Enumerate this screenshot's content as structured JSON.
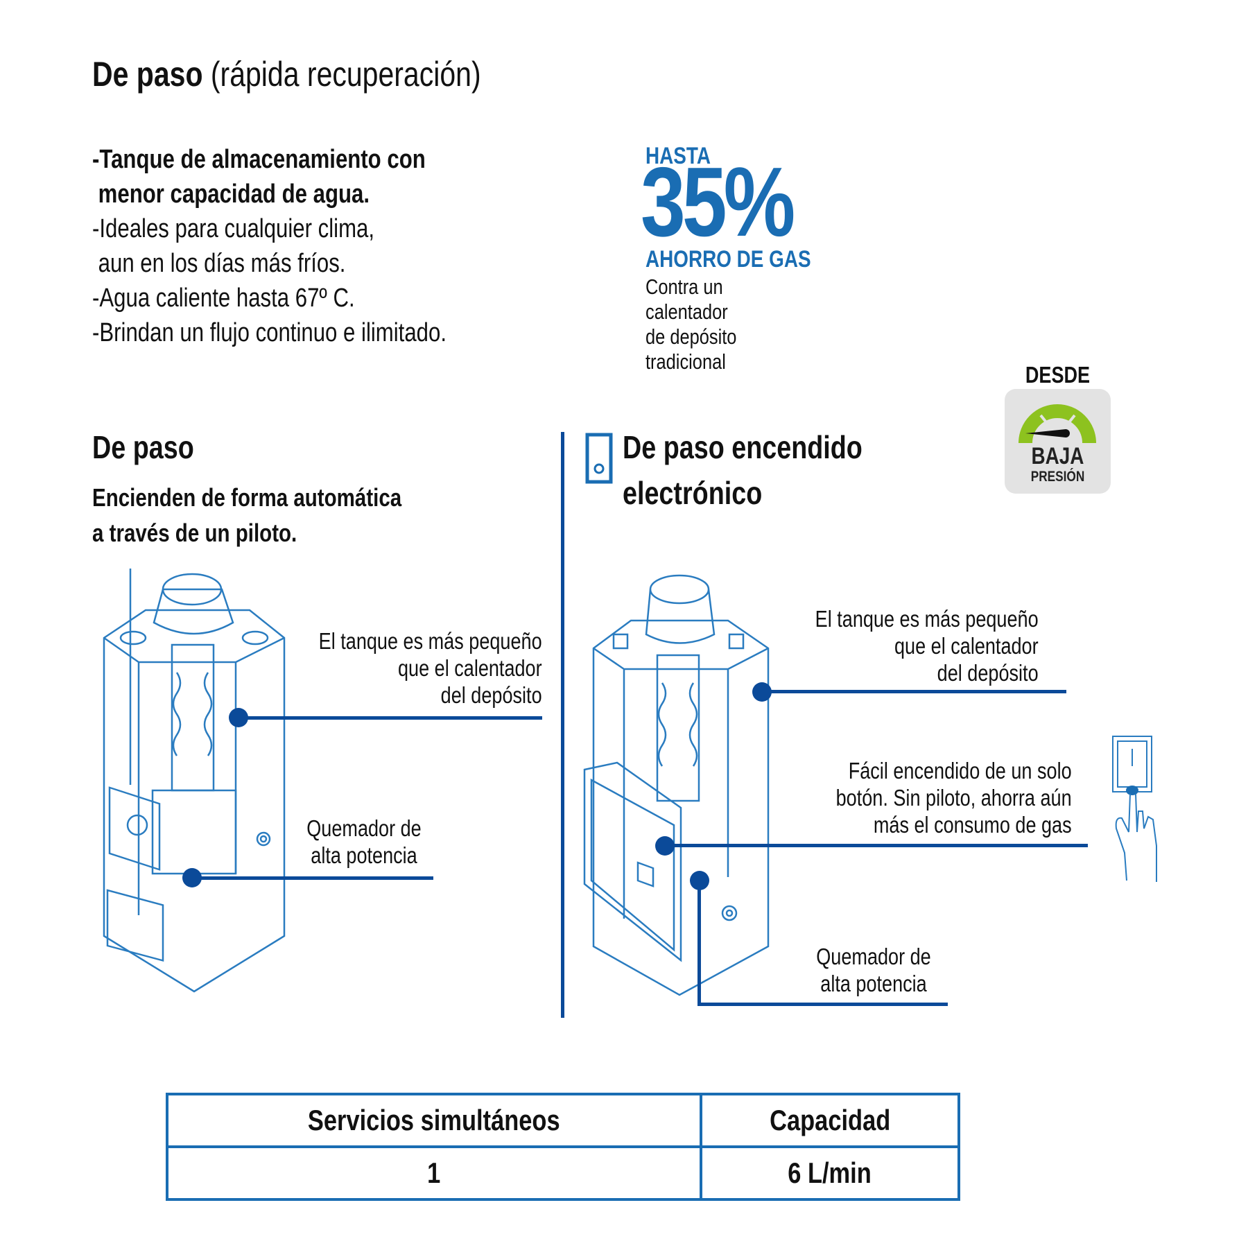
{
  "title": {
    "bold": "De paso",
    "regular": " (rápida recuperación)"
  },
  "features": {
    "bold_lines": [
      "-Tanque de almacenamiento con",
      " menor capacidad de agua."
    ],
    "lines": [
      "-Ideales para cualquier clima,",
      " aun en los días más fríos.",
      "-Agua caliente hasta 67º C.",
      "-Brindan un flujo continuo e ilimitado."
    ]
  },
  "savings": {
    "prefix": "HASTA",
    "value": "35%",
    "label": "AHORRO DE GAS",
    "note_lines": [
      "Contra un",
      "calentador",
      "de depósito",
      "tradicional"
    ]
  },
  "pressure_badge": {
    "top": "DESDE",
    "main": "BAJA",
    "sub": "PRESIÓN",
    "gauge_color": "#8dc21f",
    "badge_bg": "#e3e3e3"
  },
  "left_section": {
    "heading": "De paso",
    "subtitle_lines": [
      "Encienden de forma automática",
      "a través de un piloto."
    ],
    "callout_tank": [
      "El tanque es más pequeño",
      "que el calentador",
      "del depósito"
    ],
    "callout_burner": [
      "Quemador de",
      "alta potencia"
    ]
  },
  "right_section": {
    "heading_lines": [
      "De paso encendido",
      "electrónico"
    ],
    "callout_tank": [
      "El tanque es más pequeño",
      "que el calentador",
      "del depósito"
    ],
    "callout_button": [
      "Fácil encendido de un solo",
      "botón. Sin piloto, ahorra aún",
      "más el consumo de gas"
    ],
    "callout_burner": [
      "Quemador de",
      "alta potencia"
    ]
  },
  "spec_table": {
    "headers": [
      "Servicios simultáneos",
      "Capacidad"
    ],
    "rows": [
      [
        "1",
        "6 L/min"
      ]
    ]
  },
  "colors": {
    "accent_blue": "#1a6db3",
    "line_navy": "#0b4a99",
    "illustration_blue": "#2a7cc0"
  }
}
